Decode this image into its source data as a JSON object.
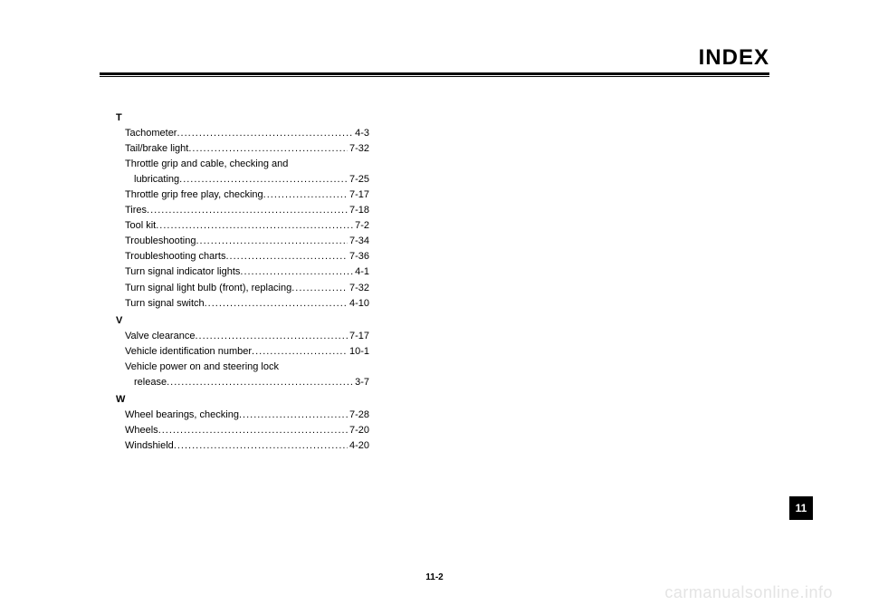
{
  "title": "INDEX",
  "page_number": "11-2",
  "tab_number": "11",
  "watermark": "carmanualsonline.info",
  "sections": [
    {
      "letter": "T",
      "entries": [
        {
          "label": "Tachometer",
          "page": "4-3"
        },
        {
          "label": "Tail/brake light",
          "page": "7-32"
        },
        {
          "label": "Throttle grip and cable, checking and",
          "page": "",
          "nowrap_no_page": true
        },
        {
          "label": "lubricating",
          "page": "7-25",
          "cont": true
        },
        {
          "label": "Throttle grip free play, checking",
          "page": "7-17"
        },
        {
          "label": "Tires",
          "page": "7-18"
        },
        {
          "label": "Tool kit",
          "page": "7-2"
        },
        {
          "label": "Troubleshooting",
          "page": "7-34"
        },
        {
          "label": "Troubleshooting charts",
          "page": "7-36"
        },
        {
          "label": "Turn signal indicator lights",
          "page": "4-1"
        },
        {
          "label": "Turn signal light bulb (front), replacing",
          "page": "7-32"
        },
        {
          "label": "Turn signal switch",
          "page": "4-10"
        }
      ]
    },
    {
      "letter": "V",
      "entries": [
        {
          "label": "Valve clearance",
          "page": "7-17"
        },
        {
          "label": "Vehicle identification number",
          "page": "10-1"
        },
        {
          "label": "Vehicle power on and steering lock",
          "page": "",
          "nowrap_no_page": true
        },
        {
          "label": "release",
          "page": "3-7",
          "cont": true
        }
      ]
    },
    {
      "letter": "W",
      "entries": [
        {
          "label": "Wheel bearings, checking",
          "page": "7-28"
        },
        {
          "label": "Wheels",
          "page": "7-20"
        },
        {
          "label": "Windshield",
          "page": "4-20"
        }
      ]
    }
  ]
}
